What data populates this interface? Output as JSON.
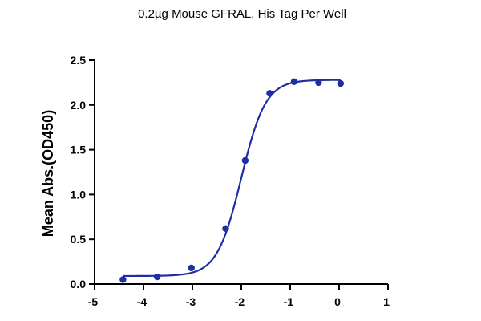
{
  "chart_data": {
    "type": "scatter",
    "title": "",
    "subtitle": "0.2µg Mouse GFRAL, His Tag Per Well",
    "xlabel": "",
    "ylabel": "Mean Abs.(OD450)",
    "xlim": [
      -5,
      1
    ],
    "ylim": [
      0,
      2.5
    ],
    "xticks": [
      "-5",
      "-4",
      "-3",
      "-2",
      "-1",
      "0",
      "1"
    ],
    "yticks": [
      "0.0",
      "0.5",
      "1.0",
      "1.5",
      "2.0",
      "2.5"
    ],
    "grid": false,
    "series": [
      {
        "points": [
          {
            "x": -4.42,
            "y": 0.05
          },
          {
            "x": -3.72,
            "y": 0.08
          },
          {
            "x": -3.02,
            "y": 0.18
          },
          {
            "x": -2.32,
            "y": 0.62
          },
          {
            "x": -1.92,
            "y": 1.38
          },
          {
            "x": -1.42,
            "y": 2.13
          },
          {
            "x": -0.92,
            "y": 2.26
          },
          {
            "x": -0.42,
            "y": 2.25
          },
          {
            "x": 0.03,
            "y": 2.24
          }
        ],
        "fit": {
          "model": "4PL",
          "bottom": 0.09,
          "top": 2.28,
          "logEC50": -2.0,
          "hill": 1.75,
          "x_range": [
            -4.42,
            0.03
          ]
        }
      }
    ],
    "colors": {
      "series": "#1f2fa3",
      "axis": "#000000"
    }
  }
}
